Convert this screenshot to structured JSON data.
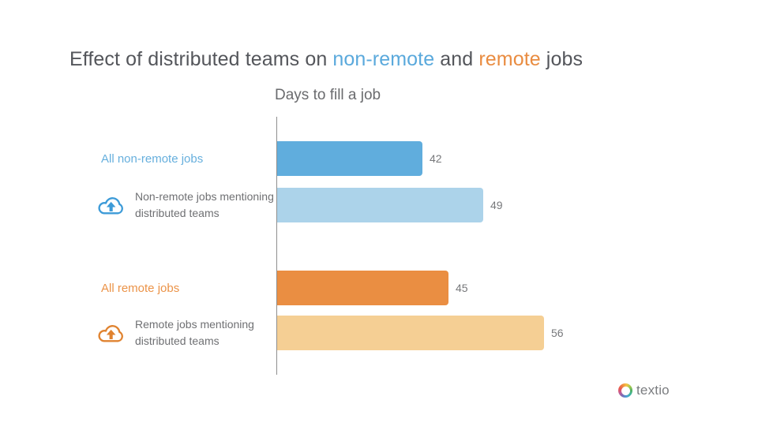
{
  "title": {
    "prefix": "Effect of distributed teams on ",
    "non_remote": "non-remote",
    "middle": " and ",
    "remote": "remote",
    "suffix": " jobs"
  },
  "axis_title": "Days to fill a job",
  "rows": [
    {
      "label": "All non-remote jobs",
      "value": "42"
    },
    {
      "label_line1": "Non-remote jobs mentioning",
      "label_line2": "distributed teams",
      "value": "49",
      "icon": "cloud-upload-icon"
    },
    {
      "label": "All remote jobs",
      "value": "45"
    },
    {
      "label_line1": "Remote jobs mentioning",
      "label_line2": "distributed teams",
      "value": "56",
      "icon": "cloud-upload-icon"
    }
  ],
  "logo": {
    "name": "textio",
    "icon": "textio-ring-icon"
  },
  "colors": {
    "bar_blue_dark": "#60ADDD",
    "bar_blue_light": "#ACD3EA",
    "bar_orange_dark": "#EA8E42",
    "bar_orange_light": "#F5CF94",
    "label_blue": "#66AFDD",
    "label_orange": "#EB9348",
    "title_blue": "#5AA9DC",
    "title_orange": "#E98C41"
  },
  "chart_data": {
    "type": "bar",
    "orientation": "horizontal",
    "title": "Effect of distributed teams on non-remote and remote jobs",
    "subtitle": "Days to fill a job",
    "categories": [
      "All non-remote jobs",
      "Non-remote jobs mentioning distributed teams",
      "All remote jobs",
      "Remote jobs mentioning distributed teams"
    ],
    "values": [
      42,
      49,
      45,
      56
    ],
    "bar_colors": [
      "#60ADDD",
      "#ACD3EA",
      "#EA8E42",
      "#F5CF94"
    ],
    "value_labels_shown": true,
    "axis_ticks_shown": false,
    "groups": [
      {
        "name": "non-remote",
        "rows": [
          0,
          1
        ]
      },
      {
        "name": "remote",
        "rows": [
          2,
          3
        ]
      }
    ],
    "legend": "none"
  }
}
